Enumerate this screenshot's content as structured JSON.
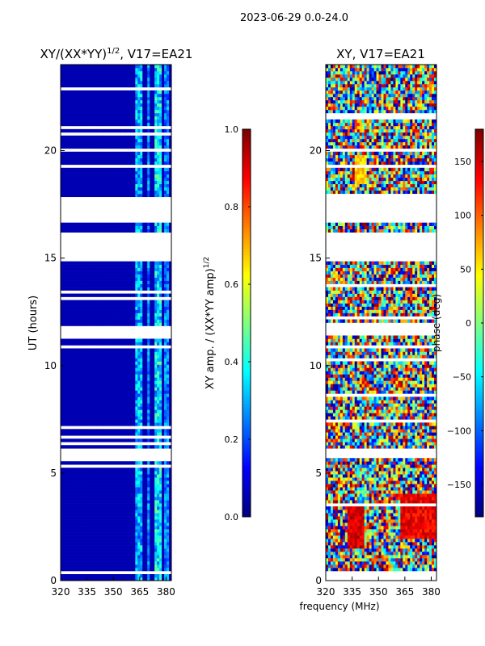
{
  "suptitle": "2023-06-29 0.0-24.0",
  "chart_data": [
    {
      "type": "heatmap",
      "title": "XY/(XX*YY)^1/2, V17=EA21",
      "title_main": "XY/(XX*YY)",
      "title_sup": "1/2",
      "title_tail": ", V17=EA21",
      "xlabel": "",
      "ylabel": "UT (hours)",
      "xlim": [
        320,
        383
      ],
      "ylim": [
        0,
        24
      ],
      "xticks": [
        "320",
        "335",
        "350",
        "365",
        "380"
      ],
      "xtick_values": [
        320,
        335,
        350,
        365,
        380
      ],
      "yticks": [
        "0",
        "5",
        "10",
        "15",
        "20"
      ],
      "ytick_values": [
        0,
        5,
        10,
        15,
        20
      ],
      "colormap": "jet",
      "colorbar": {
        "label": "XY amp. / (XX*YY amp)^1/2",
        "label_main": "XY amp. / (XX*YY amp)",
        "label_sup": "1/2",
        "range": [
          0.0,
          1.0
        ],
        "ticks": [
          "0.0",
          "0.2",
          "0.4",
          "0.6",
          "0.8",
          "1.0"
        ],
        "tick_values": [
          0.0,
          0.2,
          0.4,
          0.6,
          0.8,
          1.0
        ]
      },
      "data_gaps_hours": [
        [
          5.75,
          6.1
        ],
        [
          11.4,
          11.9
        ],
        [
          14.85,
          16.2
        ],
        [
          16.6,
          17.8
        ],
        [
          19.9,
          20.05
        ]
      ],
      "features": [
        {
          "freq_range_mhz": [
            363,
            366
          ],
          "approx_value": 0.3
        },
        {
          "freq_range_mhz": [
            369,
            371
          ],
          "approx_value": 0.25
        },
        {
          "freq_range_mhz": [
            374,
            377
          ],
          "approx_value": 0.35
        },
        {
          "freq_range_mhz": [
            379,
            381
          ],
          "approx_value": 0.25
        }
      ],
      "background_value": 0.05
    },
    {
      "type": "heatmap",
      "title": "XY, V17=EA21",
      "xlabel": "frequency (MHz)",
      "ylabel": "",
      "xlim": [
        320,
        383
      ],
      "ylim": [
        0,
        24
      ],
      "xticks": [
        "320",
        "335",
        "350",
        "365",
        "380"
      ],
      "xtick_values": [
        320,
        335,
        350,
        365,
        380
      ],
      "yticks": [
        "0",
        "5",
        "10",
        "15",
        "20"
      ],
      "ytick_values": [
        0,
        5,
        10,
        15,
        20
      ],
      "colormap": "jet",
      "colorbar": {
        "label": "phase (deg)",
        "range": [
          -180,
          180
        ],
        "ticks": [
          "−150",
          "−100",
          "−50",
          "0",
          "50",
          "100",
          "150"
        ],
        "tick_values": [
          -150,
          -100,
          -50,
          0,
          50,
          100,
          150
        ]
      },
      "data_gaps_hours": [
        [
          5.75,
          6.1
        ],
        [
          11.4,
          11.9
        ],
        [
          14.85,
          16.2
        ],
        [
          16.6,
          17.8
        ],
        [
          19.9,
          20.05
        ]
      ],
      "features": [
        {
          "freq_range_mhz": [
            332,
            342
          ],
          "hours": [
            1.5,
            3.5
          ],
          "approx_phase_deg": 150
        },
        {
          "freq_range_mhz": [
            337,
            343
          ],
          "hours": [
            18.5,
            19.8
          ],
          "approx_phase_deg": 60
        },
        {
          "freq_range_mhz": [
            363,
            383
          ],
          "hours": [
            2.0,
            4.0
          ],
          "approx_phase_deg": 140
        }
      ],
      "background": "noisy random phase"
    }
  ]
}
